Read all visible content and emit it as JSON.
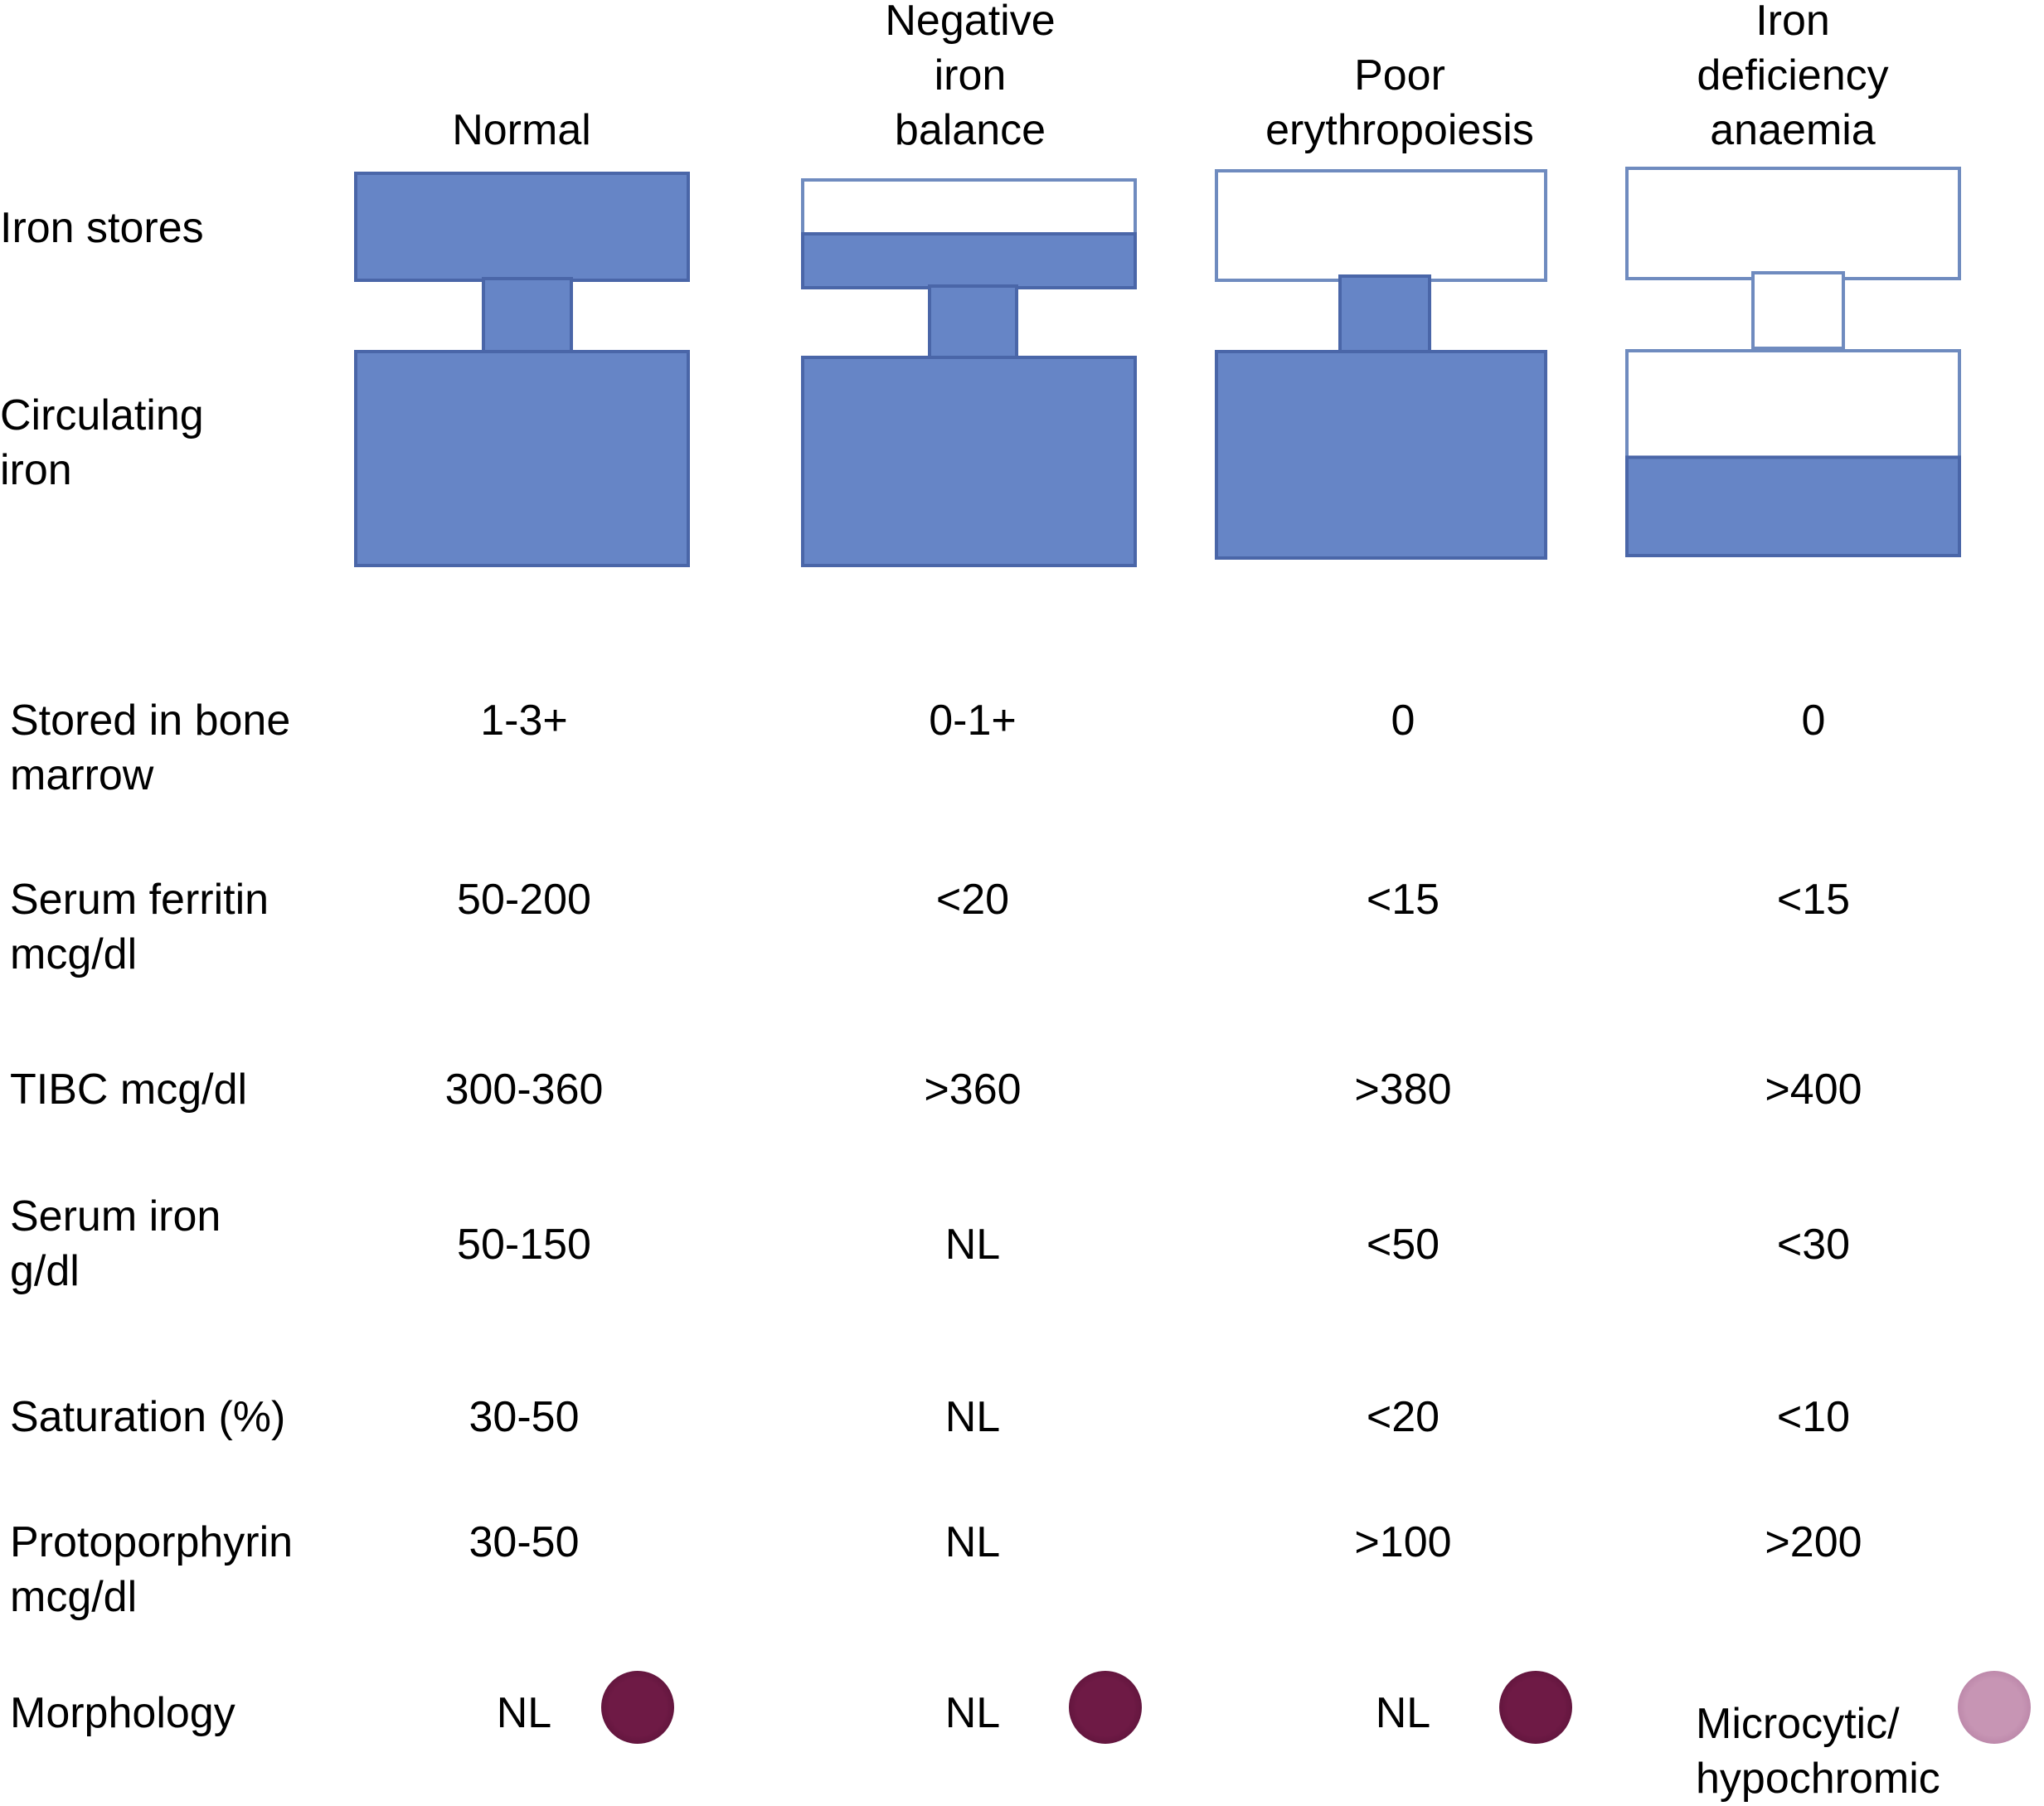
{
  "columns": [
    {
      "id": "normal",
      "title_lines": [
        "Normal"
      ]
    },
    {
      "id": "negative-iron-balance",
      "title_lines": [
        "Negative",
        "iron",
        "balance"
      ]
    },
    {
      "id": "poor-erythropoiesis",
      "title_lines": [
        "Poor",
        "erythropoiesis"
      ]
    },
    {
      "id": "iron-deficiency-anaemia",
      "title_lines": [
        "Iron",
        "deficiency",
        "anaemia"
      ]
    }
  ],
  "diagram_labels": {
    "iron_stores": "Iron stores",
    "circulating_iron_lines": [
      "Circulating",
      "iron"
    ]
  },
  "compartments": {
    "note": "Fraction of each compartment filled (blue) per stage",
    "iron_stores_fill": [
      1.0,
      0.5,
      0.0,
      0.0
    ],
    "transport_fill": [
      1.0,
      1.0,
      1.0,
      0.0
    ],
    "circulating_iron_fill": [
      1.0,
      1.0,
      1.0,
      0.48
    ]
  },
  "colors": {
    "fill": "#6685c6",
    "stroke": "#4a66a8",
    "empty_stroke": "#6f8bbf",
    "normal_cell": "#6e1a45",
    "pale_cell": "#c795b4"
  },
  "rows": [
    {
      "label_lines": [
        "Stored in bone",
        "marrow"
      ],
      "values": [
        "1-3+",
        "0-1+",
        "0",
        "0"
      ]
    },
    {
      "label_lines": [
        "Serum ferritin",
        "mcg/dl"
      ],
      "values": [
        "50-200",
        "<20",
        "<15",
        "<15"
      ]
    },
    {
      "label_lines": [
        "TIBC mcg/dl"
      ],
      "values": [
        "300-360",
        ">360",
        ">380",
        ">400"
      ]
    },
    {
      "label_lines": [
        "Serum iron",
        "g/dl"
      ],
      "values": [
        "50-150",
        "NL",
        "<50",
        "<30"
      ]
    },
    {
      "label_lines": [
        "Saturation (%)"
      ],
      "values": [
        "30-50",
        "NL",
        "<20",
        "<10"
      ]
    },
    {
      "label_lines": [
        "Protoporphyrin",
        "mcg/dl"
      ],
      "values": [
        "30-50",
        "NL",
        ">100",
        ">200"
      ]
    }
  ],
  "morphology": {
    "label": "Morphology",
    "values": [
      {
        "text_lines": [
          "NL"
        ],
        "cell": "normal"
      },
      {
        "text_lines": [
          "NL"
        ],
        "cell": "normal"
      },
      {
        "text_lines": [
          "NL"
        ],
        "cell": "normal"
      },
      {
        "text_lines": [
          "Microcytic/",
          "hypochromic"
        ],
        "cell": "pale"
      }
    ]
  }
}
